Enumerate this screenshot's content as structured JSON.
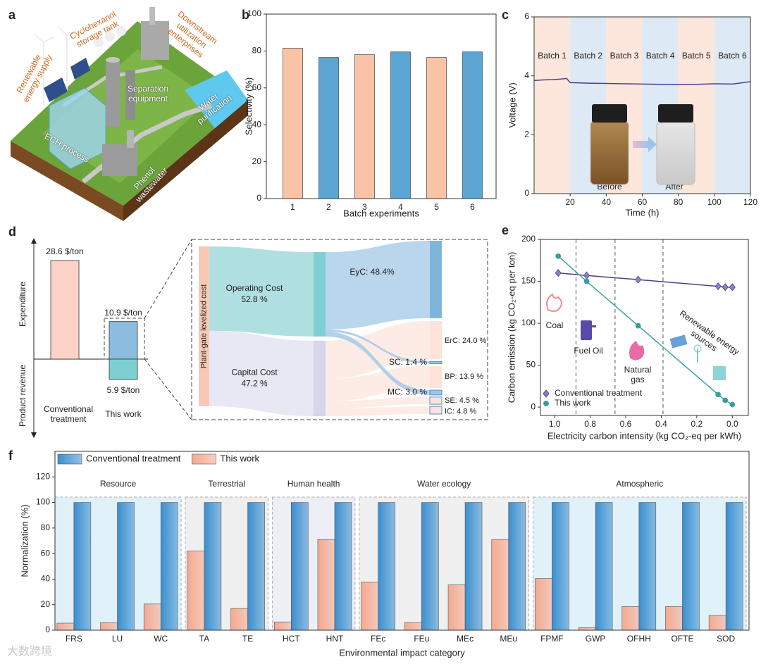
{
  "panel_labels": [
    "a",
    "b",
    "c",
    "d",
    "e",
    "f"
  ],
  "illustration": {
    "labels": [
      "Renewable energy supply",
      "Cyclohexanol storage tank",
      "Downstream utilization enterprises",
      "Separation equipment",
      "Water purification",
      "ECH process",
      "Phenol wastewater"
    ]
  },
  "watermark": "大数跨境",
  "chart_data": [
    {
      "type": "bar",
      "categories": [
        "1",
        "2",
        "3",
        "4",
        "5",
        "6"
      ],
      "values": [
        81.5,
        76.5,
        78,
        79.5,
        76.5,
        79.5
      ],
      "colors": [
        "#fbc3a6",
        "#5ba5d3",
        "#fbc3a6",
        "#5ba5d3",
        "#fbc3a6",
        "#5ba5d3"
      ],
      "ylim": [
        0,
        100
      ],
      "yticks": [
        0,
        20,
        40,
        60,
        80,
        100
      ],
      "xlabel": "Batch experiments",
      "ylabel": "Selectivity (%)"
    },
    {
      "type": "line",
      "x": [
        0,
        5,
        10,
        15,
        18,
        20,
        25,
        30,
        40,
        50,
        60,
        70,
        80,
        90,
        100,
        110,
        120
      ],
      "series": [
        {
          "color": "#4b3f8f",
          "values": [
            3.84,
            3.86,
            3.87,
            3.89,
            3.91,
            3.77,
            3.76,
            3.75,
            3.74,
            3.73,
            3.72,
            3.71,
            3.7,
            3.71,
            3.73,
            3.72,
            3.8
          ]
        }
      ],
      "xlim": [
        0,
        120
      ],
      "xticks": [
        20,
        40,
        60,
        80,
        100,
        120
      ],
      "ylim": [
        0,
        6
      ],
      "yticks": [
        0,
        2,
        4,
        6
      ],
      "xlabel": "Time (h)",
      "ylabel": "Voltage (V)",
      "bands": [
        {
          "label": "Batch 1",
          "x": [
            0,
            20
          ],
          "color": "#fde6dc"
        },
        {
          "label": "Batch 2",
          "x": [
            20,
            40
          ],
          "color": "#dde9f4"
        },
        {
          "label": "Batch 3",
          "x": [
            40,
            60
          ],
          "color": "#fde6dc"
        },
        {
          "label": "Batch 4",
          "x": [
            60,
            80
          ],
          "color": "#dde9f4"
        },
        {
          "label": "Batch 5",
          "x": [
            80,
            100
          ],
          "color": "#fde6dc"
        },
        {
          "label": "Batch 6",
          "x": [
            100,
            120
          ],
          "color": "#dde9f4"
        }
      ],
      "annotations": [
        "Before",
        "After"
      ]
    },
    {
      "type": "diverging_bar",
      "categories": [
        "Conventional treatment",
        "This work"
      ],
      "series": [
        {
          "name": "Expenditure",
          "colors": [
            "#fcd3c6",
            "#8cbde1"
          ],
          "values": [
            28.6,
            10.9
          ],
          "value_labels": [
            "28.6 $/ton",
            "10.9 $/ton"
          ]
        },
        {
          "name": "Product revenue",
          "color": "#7ecfcf",
          "values": [
            null,
            5.9
          ],
          "value_labels": [
            null,
            "5.9 $/ton"
          ]
        }
      ]
    },
    {
      "type": "sankey",
      "nodes": [
        {
          "label": "Plant-gate levelized cost",
          "color": "#f9c8b4"
        },
        {
          "label": "Operating Cost",
          "value": 52.8,
          "value_label": "52.8 %",
          "parent": 0,
          "color": "#7fcfd4",
          "link_color": "#a7dcdf"
        },
        {
          "label": "Capital Cost",
          "value": 47.2,
          "value_label": "47.2 %",
          "parent": 0,
          "color": "#d5d5ec",
          "link_color": "#e6e6f4"
        },
        {
          "label": "EyC: 48.4%",
          "value": 48.4,
          "parent": 1,
          "color": "#7fb5da",
          "link_color": "#b3d2ea"
        },
        {
          "label": "ErC: 24.0 %",
          "value": 24.0,
          "parent": 2,
          "color": "#fde3da",
          "link_color": "#fdeae3"
        },
        {
          "label": "SC: 1.4 %",
          "value": 1.4,
          "parent": 1,
          "color": "#9cc7e6",
          "link_color": "#a9cce8"
        },
        {
          "label": "BP: 13.9 %",
          "value": 13.9,
          "parent": 2,
          "color": "#fde3da",
          "link_color": "#fdeae3"
        },
        {
          "label": "MC: 3.0 %",
          "value": 3.0,
          "parent": 1,
          "color": "#9cc7e6",
          "link_color": "#a9cce8"
        },
        {
          "label": "SE: 4.5 %",
          "value": 4.5,
          "parent": 2,
          "color": "#fde3da",
          "link_color": "#fdeae3"
        },
        {
          "label": "IC: 4.8 %",
          "value": 4.8,
          "parent": 2,
          "color": "#fde3da",
          "link_color": "#fdeae3"
        }
      ]
    },
    {
      "type": "line",
      "series": [
        {
          "name": "Conventional treatment",
          "color": "#4b3f8f",
          "marker": "diamond",
          "marker_color": "#8c82c9",
          "x": [
            0.98,
            0.82,
            0.53,
            0.08,
            0.04,
            0.0
          ],
          "values": [
            160,
            157,
            152,
            144,
            143,
            143
          ]
        },
        {
          "name": "This work",
          "color": "#3aa6a3",
          "marker": "circle",
          "marker_color": "#3b9a9a",
          "x": [
            0.98,
            0.82,
            0.53,
            0.08,
            0.04,
            0.0
          ],
          "values": [
            180,
            150,
            97,
            15,
            8,
            3
          ]
        }
      ],
      "xlim": [
        1.08,
        -0.09
      ],
      "xticks": [
        {
          "value": 1,
          "label": "1.0"
        },
        0.8,
        0.6,
        0.4,
        0.2,
        {
          "value": 0,
          "label": "0.0"
        }
      ],
      "ylim": [
        -10,
        200
      ],
      "yticks": [
        0,
        50,
        100,
        150,
        200
      ],
      "xlabel": "Electricity carbon intensity (kg CO₂-eq per kWh)",
      "ylabel": "Carbon emission (kg CO₂-eq per ton)",
      "vlines": [
        0.88,
        0.66,
        0.39
      ],
      "annotations": [
        "Coal",
        "Fuel Oil",
        "Natural gas",
        "Renewable energy sources"
      ],
      "legend": "lower left"
    },
    {
      "type": "bar",
      "categories": [
        "FRS",
        "LU",
        "WC",
        "TA",
        "TE",
        "HCT",
        "HNT",
        "FEc",
        "FEu",
        "MEc",
        "MEu",
        "FPMF",
        "GWP",
        "OFHH",
        "OFTE",
        "SOD"
      ],
      "series": [
        {
          "name": "Conventional treatment",
          "color": "#3b8fd0",
          "values": [
            100,
            100,
            100,
            100,
            100,
            100,
            100,
            100,
            100,
            100,
            100,
            100,
            100,
            100,
            100,
            100
          ]
        },
        {
          "name": "This work",
          "color": "#f5a98f",
          "values": [
            5.5,
            6,
            20.5,
            62,
            17,
            6.5,
            71,
            37.5,
            6,
            35.5,
            71,
            40.5,
            2,
            18.5,
            18.5,
            11.5
          ]
        }
      ],
      "groups": [
        {
          "name": "Resource",
          "start": 0,
          "end": 2,
          "color": "#e1f1f9"
        },
        {
          "name": "Terrestrial",
          "start": 3,
          "end": 4,
          "color": "#efefef"
        },
        {
          "name": "Human health",
          "start": 5,
          "end": 6,
          "color": "#eeeef7"
        },
        {
          "name": "Water ecology",
          "start": 7,
          "end": 10,
          "color": "#f0f0f0"
        },
        {
          "name": "Atmospheric",
          "start": 11,
          "end": 15,
          "color": "#e1f1f9"
        }
      ],
      "ylim": [
        0,
        140
      ],
      "yticks": [
        0,
        20,
        40,
        60,
        80,
        100,
        120
      ],
      "xlabel": "Environmental impact category",
      "ylabel": "Normalization (%)",
      "legend": "upper left"
    }
  ]
}
